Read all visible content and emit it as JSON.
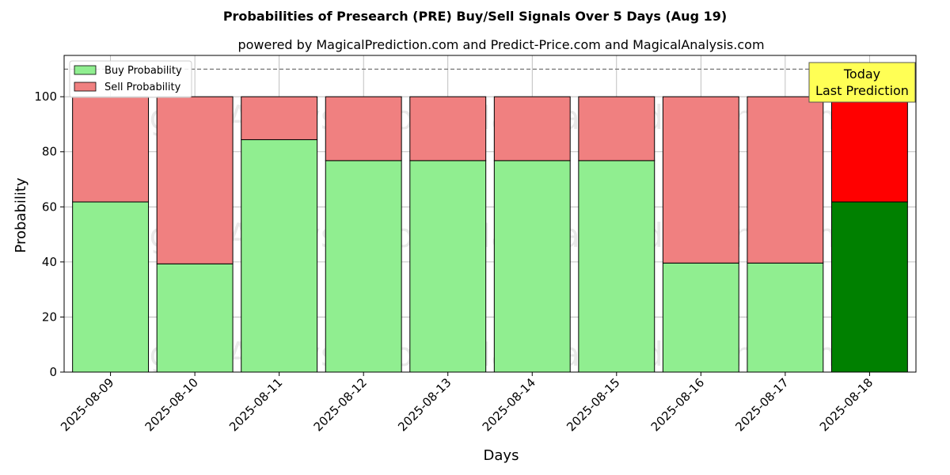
{
  "chart_data": {
    "type": "bar",
    "stacked": true,
    "title": "Probabilities of Presearch (PRE) Buy/Sell Signals Over 5 Days (Aug 19)",
    "subtitle": "powered by MagicalPrediction.com and Predict-Price.com and MagicalAnalysis.com",
    "xlabel": "Days",
    "ylabel": "Probability",
    "ylim": [
      0,
      115
    ],
    "yticks": [
      0,
      20,
      40,
      60,
      80,
      100
    ],
    "grid": true,
    "legend_position": "top-left",
    "reference_line": 110,
    "categories": [
      "2025-08-09",
      "2025-08-10",
      "2025-08-11",
      "2025-08-12",
      "2025-08-13",
      "2025-08-14",
      "2025-08-15",
      "2025-08-16",
      "2025-08-17",
      "2025-08-18"
    ],
    "series": [
      {
        "name": "Buy Probability",
        "values": [
          61.8,
          39.3,
          84.4,
          76.8,
          76.8,
          76.8,
          76.8,
          39.6,
          39.6,
          61.8
        ],
        "color": "#90ee90",
        "highlight_color": "#008000"
      },
      {
        "name": "Sell Probability",
        "values": [
          38.2,
          60.7,
          15.6,
          23.2,
          23.2,
          23.2,
          23.2,
          60.4,
          60.4,
          38.2
        ],
        "color": "#f08080",
        "highlight_color": "#ff0000"
      }
    ],
    "highlight_index": 9,
    "annotation": {
      "line1": "Today",
      "line2": "Last Prediction",
      "background": "#ffff55"
    },
    "watermarks": [
      "MagicalAnalysis.com",
      "MagicalPrediction.com",
      "MagicalAnalysis.com",
      "MagicalPrediction.com",
      "MagicalAnalysis.com",
      "MagicalPrediction.com"
    ]
  }
}
